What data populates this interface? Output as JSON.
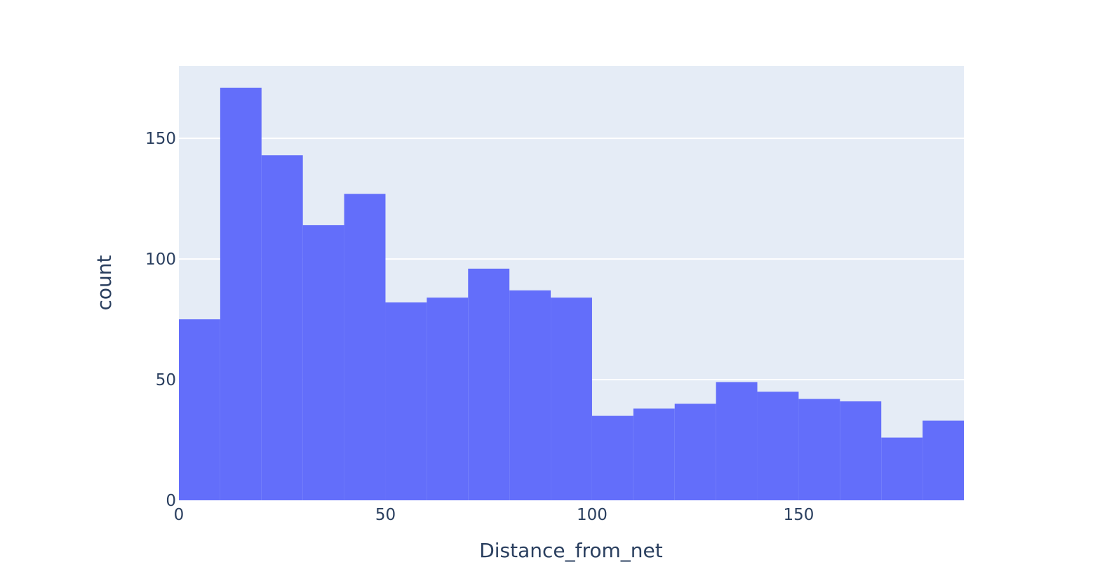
{
  "chart_data": {
    "type": "histogram",
    "xlabel": "Distance_from_net",
    "ylabel": "count",
    "xlim": [
      0,
      190
    ],
    "ylim": [
      0,
      180
    ],
    "x_ticks": [
      0,
      50,
      100,
      150
    ],
    "y_ticks": [
      0,
      50,
      100,
      150
    ],
    "bin_width": 10,
    "bins": [
      {
        "start": 0,
        "end": 10,
        "count": 75
      },
      {
        "start": 10,
        "end": 20,
        "count": 171
      },
      {
        "start": 20,
        "end": 30,
        "count": 143
      },
      {
        "start": 30,
        "end": 40,
        "count": 114
      },
      {
        "start": 40,
        "end": 50,
        "count": 127
      },
      {
        "start": 50,
        "end": 60,
        "count": 82
      },
      {
        "start": 60,
        "end": 70,
        "count": 84
      },
      {
        "start": 70,
        "end": 80,
        "count": 96
      },
      {
        "start": 80,
        "end": 90,
        "count": 87
      },
      {
        "start": 90,
        "end": 100,
        "count": 84
      },
      {
        "start": 100,
        "end": 110,
        "count": 35
      },
      {
        "start": 110,
        "end": 120,
        "count": 38
      },
      {
        "start": 120,
        "end": 130,
        "count": 40
      },
      {
        "start": 130,
        "end": 140,
        "count": 49
      },
      {
        "start": 140,
        "end": 150,
        "count": 45
      },
      {
        "start": 150,
        "end": 160,
        "count": 42
      },
      {
        "start": 160,
        "end": 170,
        "count": 41
      },
      {
        "start": 170,
        "end": 180,
        "count": 26
      },
      {
        "start": 180,
        "end": 190,
        "count": 33
      }
    ],
    "colors": {
      "bar": "#636efa",
      "plot_background": "#e5ecf6",
      "grid": "#ffffff",
      "text": "#2a3f5f"
    },
    "grid": true,
    "legend": "none"
  }
}
